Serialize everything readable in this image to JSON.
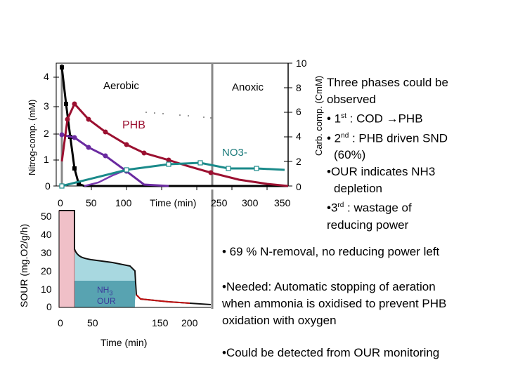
{
  "top_chart": {
    "left_axis_label": "Nitrog-comp. (mM)",
    "right_axis_label": "Carb. comp. (CmM)",
    "left_ticks": [
      "0",
      "1",
      "2",
      "3",
      "4"
    ],
    "right_ticks": [
      "0",
      "2",
      "4",
      "6",
      "8",
      "10"
    ],
    "x_ticks": [
      "0",
      "50",
      "100",
      "250",
      "300",
      "350"
    ],
    "x_label": "Time (min)",
    "phase_aerobic": "Aerobic",
    "phase_anoxic": "Anoxic",
    "label_phb": "PHB",
    "label_no3": "NO3-",
    "colors": {
      "phb": "#9b1030",
      "nh3": "#000000",
      "cod": "#6a2aa0",
      "no3": "#1a8a8a",
      "aux": "#8a5a20"
    }
  },
  "bottom_chart": {
    "y_axis_label": "SOUR (mg.O2/g/h)",
    "y_ticks": [
      "0",
      "10",
      "20",
      "30",
      "40",
      "50"
    ],
    "x_ticks": [
      "0",
      "50",
      "150",
      "200"
    ],
    "x_label": "Time (min)",
    "nh3_label_main": "NH",
    "nh3_label_sub": "3",
    "our_label": "OUR",
    "colors": {
      "curve": "#c01010",
      "fill": "#a8d8e0",
      "pink": "#f0c0c8"
    }
  },
  "bullets": {
    "line1": "Three phases could be",
    "line2": "observed",
    "line3_prefix": "• 1",
    "line3_sup": "st",
    "line3_rest": " : COD →PHB",
    "line4_prefix": "• 2",
    "line4_sup": "nd",
    "line4_rest": " : PHB driven SND",
    "line5": "(60%)",
    "line6": "•OUR indicates NH3",
    "line7": "depletion",
    "line8_prefix": "•3",
    "line8_sup": "rd",
    "line8_rest": " : wastage of",
    "line9": "reducing power"
  },
  "notes": {
    "n_removal": "• 69 % N-removal, no reducing power left",
    "needed_1": "•Needed: Automatic stopping of aeration",
    "needed_2": "when ammonia is oxidised to prevent PHB",
    "needed_3": "oxidation with oxygen",
    "detected": "•Could be detected from OUR monitoring"
  }
}
